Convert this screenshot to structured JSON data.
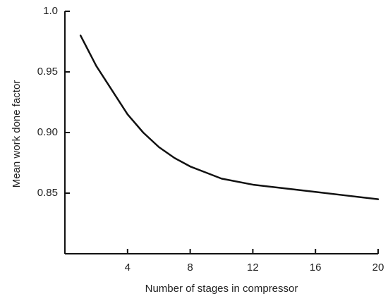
{
  "chart_data": {
    "type": "line",
    "xlabel": "Number of stages in compressor",
    "ylabel": "Mean work done factor",
    "x": [
      1,
      2,
      3,
      4,
      5,
      6,
      7,
      8,
      9,
      10,
      12,
      14,
      16,
      18,
      20
    ],
    "values": [
      0.98,
      0.955,
      0.935,
      0.915,
      0.9,
      0.888,
      0.879,
      0.872,
      0.867,
      0.862,
      0.857,
      0.854,
      0.851,
      0.848,
      0.845
    ],
    "color": "#111111",
    "xlim": [
      0,
      20
    ],
    "xticks": [
      4,
      8,
      12,
      16,
      20
    ],
    "ylim": [
      0.8,
      1.0
    ],
    "yticks": [
      {
        "value": 1.0,
        "label": "1.0"
      },
      0.95,
      {
        "value": 0.9,
        "label": "0.90"
      },
      0.85
    ],
    "grid": false
  }
}
